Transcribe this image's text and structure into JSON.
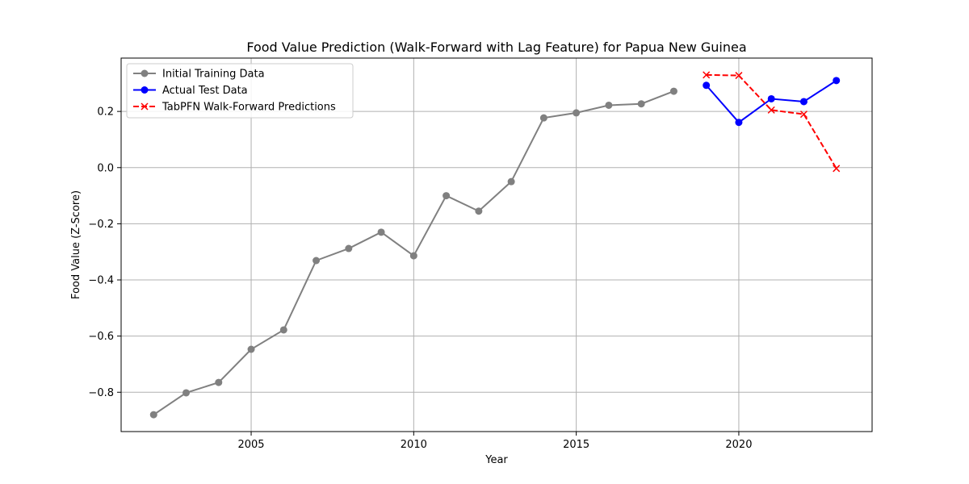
{
  "chart_data": {
    "type": "line",
    "title": "Food Value Prediction (Walk-Forward with Lag Feature) for Papua New Guinea",
    "xlabel": "Year",
    "ylabel": "Food Value (Z-Score)",
    "xlim": [
      2001.0,
      2024.1
    ],
    "ylim": [
      -0.94,
      0.39
    ],
    "xticks": [
      2005,
      2010,
      2015,
      2020
    ],
    "yticks": [
      -0.8,
      -0.6,
      -0.4,
      -0.2,
      0.0,
      0.2
    ],
    "ytick_labels": [
      "−0.8",
      "−0.6",
      "−0.4",
      "−0.2",
      "0.0",
      "0.2"
    ],
    "grid": true,
    "legend_position": "top-left",
    "series": [
      {
        "name": "Initial Training Data",
        "color": "#808080",
        "marker": "circle",
        "linestyle": "solid",
        "x": [
          2002,
          2003,
          2004,
          2005,
          2006,
          2007,
          2008,
          2009,
          2010,
          2011,
          2012,
          2013,
          2014,
          2015,
          2016,
          2017,
          2018
        ],
        "y": [
          -0.88,
          -0.802,
          -0.765,
          -0.647,
          -0.578,
          -0.331,
          -0.288,
          -0.23,
          -0.314,
          -0.1,
          -0.155,
          -0.05,
          0.177,
          0.195,
          0.222,
          0.227,
          0.272
        ]
      },
      {
        "name": "Actual Test Data",
        "color": "#0000ff",
        "marker": "circle",
        "linestyle": "solid",
        "x": [
          2019,
          2020,
          2021,
          2022,
          2023
        ],
        "y": [
          0.293,
          0.161,
          0.245,
          0.235,
          0.31
        ]
      },
      {
        "name": "TabPFN Walk-Forward Predictions",
        "color": "#ff0000",
        "marker": "x",
        "linestyle": "dashed",
        "x": [
          2019,
          2020,
          2021,
          2022,
          2023
        ],
        "y": [
          0.33,
          0.328,
          0.205,
          0.19,
          -0.003
        ]
      }
    ]
  }
}
